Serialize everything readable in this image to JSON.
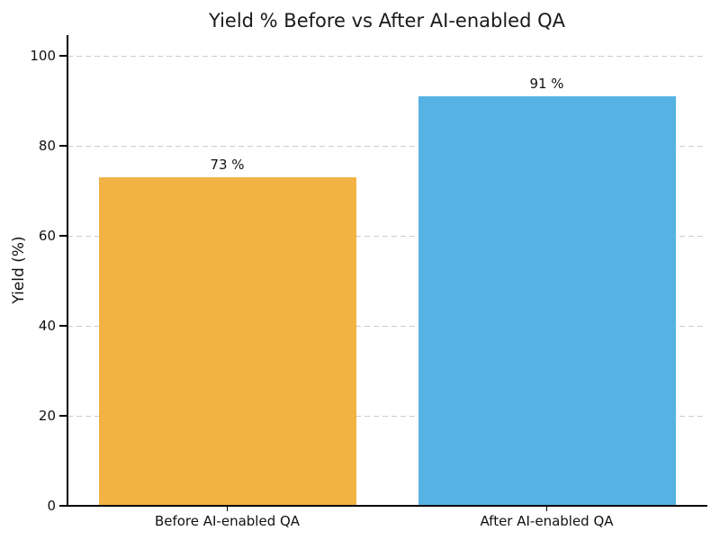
{
  "chart_data": {
    "type": "bar",
    "title": "Yield % Before vs After AI-enabled QA",
    "xlabel": "",
    "ylabel": "Yield (%)",
    "categories": [
      "Before AI-enabled QA",
      "After AI-enabled QA"
    ],
    "values": [
      73,
      91
    ],
    "value_labels": [
      "73 %",
      "91 %"
    ],
    "bar_colors": [
      "#F2B344",
      "#55B2E2"
    ],
    "yticks": [
      0,
      20,
      40,
      60,
      80,
      100
    ],
    "ylim": [
      0,
      104.6
    ],
    "grid": "horizontal dashed gridlines on",
    "gridline_color": "#cccccc",
    "legend_position": "none",
    "axis_color": "#000000",
    "text_color": "#111111"
  }
}
